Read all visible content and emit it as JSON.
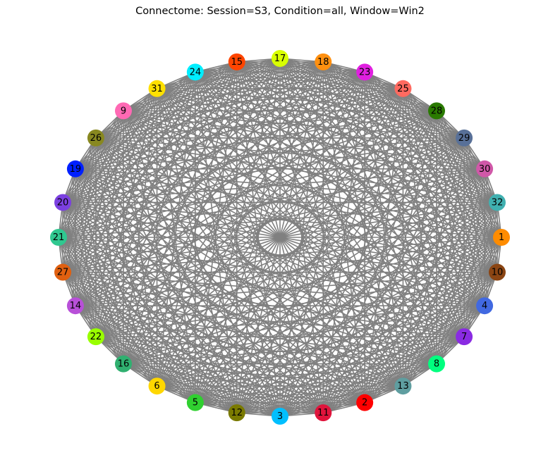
{
  "figure": {
    "title": "Connectome: Session=S3, Condition=all, Window=Win2"
  },
  "graph": {
    "type": "circular network",
    "edge_color": "#808080",
    "fully_connected": true,
    "nodes": [
      {
        "label": "1",
        "color": "#ff8c00"
      },
      {
        "label": "32",
        "color": "#40b0b0"
      },
      {
        "label": "30",
        "color": "#d058a8"
      },
      {
        "label": "29",
        "color": "#587098"
      },
      {
        "label": "28",
        "color": "#2a7a00"
      },
      {
        "label": "25",
        "color": "#ff6a60"
      },
      {
        "label": "23",
        "color": "#e020e0"
      },
      {
        "label": "18",
        "color": "#ff9010"
      },
      {
        "label": "17",
        "color": "#d8ff00"
      },
      {
        "label": "15",
        "color": "#ff4500"
      },
      {
        "label": "24",
        "color": "#00eeff"
      },
      {
        "label": "31",
        "color": "#ffe000"
      },
      {
        "label": "9",
        "color": "#ff69b4"
      },
      {
        "label": "26",
        "color": "#888820"
      },
      {
        "label": "19",
        "color": "#0020ff"
      },
      {
        "label": "20",
        "color": "#7b40e0"
      },
      {
        "label": "21",
        "color": "#30c890"
      },
      {
        "label": "27",
        "color": "#e06010"
      },
      {
        "label": "14",
        "color": "#b850d8"
      },
      {
        "label": "22",
        "color": "#99ff00"
      },
      {
        "label": "16",
        "color": "#30b070"
      },
      {
        "label": "6",
        "color": "#ffd700"
      },
      {
        "label": "5",
        "color": "#30d030"
      },
      {
        "label": "12",
        "color": "#7a7a00"
      },
      {
        "label": "3",
        "color": "#00bfff"
      },
      {
        "label": "11",
        "color": "#e0143c"
      },
      {
        "label": "2",
        "color": "#ff0000"
      },
      {
        "label": "13",
        "color": "#5f9ea0"
      },
      {
        "label": "8",
        "color": "#00ff7f"
      },
      {
        "label": "7",
        "color": "#8a2be2"
      },
      {
        "label": "4",
        "color": "#4169e1"
      },
      {
        "label": "10",
        "color": "#8b4513"
      }
    ]
  }
}
